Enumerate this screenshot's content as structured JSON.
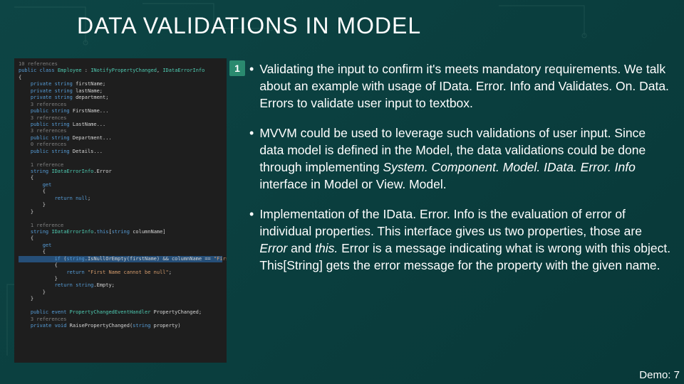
{
  "title": "DATA VALIDATIONS IN MODEL",
  "badge": "1",
  "demo_label": "Demo: 7",
  "bullets": [
    {
      "html": "Validating the input to confirm it's meets mandatory requirements. We talk about an example with usage of IData. Error. Info and Validates. On. Data. Errors to validate user input to textbox."
    },
    {
      "html": "MVVM could be used to leverage such validations of user input. Since data model is defined in the Model, the data validations could be done through implementing <em>System. Component. Model. IData. Error. Info</em> interface in Model or View. Model."
    },
    {
      "html": "Implementation of the IData. Error. Info is the evaluation of error of individual properties. This interface gives us two properties, those are <em>Error</em> and <em>this.</em> Error is a message indicating what is wrong with this object. This[String] gets the error message for the property with the given name."
    }
  ],
  "colors": {
    "background": "#0a3d3d",
    "code_bg": "#1e1e1e",
    "keyword": "#569cd6",
    "class": "#4ec9b0",
    "string": "#d69d6d",
    "gray": "#808080",
    "selection": "#264f78",
    "badge_bg": "#2a8a6f",
    "text": "#ffffff"
  },
  "code": {
    "lines": [
      {
        "g": "10 references",
        "t": ""
      },
      {
        "t": "<kw>public</kw> <kw>class</kw> <cls>Employee</cls> : <cls>INotifyPropertyChanged</cls>, <cls>IDataErrorInfo</cls>"
      },
      {
        "t": "{"
      },
      {
        "t": "    <kw>private string</kw> firstName;"
      },
      {
        "t": "    <kw>private string</kw> lastName;"
      },
      {
        "t": "    <kw>private string</kw> department;"
      },
      {
        "g": "    3 references",
        "t": ""
      },
      {
        "t": "    <kw>public string</kw> FirstName..."
      },
      {
        "g": "    3 references",
        "t": ""
      },
      {
        "t": "    <kw>public string</kw> LastName..."
      },
      {
        "g": "    3 references",
        "t": ""
      },
      {
        "t": "    <kw>public string</kw> Department..."
      },
      {
        "g": "    0 references",
        "t": ""
      },
      {
        "t": "    <kw>public string</kw> Details..."
      },
      {
        "t": ""
      },
      {
        "g": "    1 reference",
        "t": ""
      },
      {
        "t": "    <kw>string</kw> <cls>IDataErrorInfo</cls>.Error"
      },
      {
        "t": "    {"
      },
      {
        "t": "        <kw>get</kw>"
      },
      {
        "t": "        {"
      },
      {
        "t": "            <kw>return null</kw>;"
      },
      {
        "t": "        }"
      },
      {
        "t": "    }"
      },
      {
        "t": ""
      },
      {
        "g": "    1 reference",
        "t": ""
      },
      {
        "t": "    <kw>string</kw> <cls>IDataErrorInfo</cls>.<kw>this</kw>[<kw>string</kw> columnName]"
      },
      {
        "t": "    {"
      },
      {
        "t": "        <kw>get</kw>"
      },
      {
        "t": "        {"
      },
      {
        "sel": true,
        "t": "            <kw>if</kw> (<kw>string</kw>.IsNullOrEmpty(firstName) && columnName == <str>\"FirstName\"</str>)"
      },
      {
        "t": "            {"
      },
      {
        "t": "                <kw>return</kw> <str>\"First Name cannot be null\"</str>;"
      },
      {
        "t": "            }"
      },
      {
        "t": "            <kw>return</kw> <kw>string</kw>.Empty;"
      },
      {
        "t": "        }"
      },
      {
        "t": "    }"
      },
      {
        "t": ""
      },
      {
        "t": "    <kw>public event</kw> <cls>PropertyChangedEventHandler</cls> PropertyChanged;"
      },
      {
        "g": "    3 references",
        "t": ""
      },
      {
        "t": "    <kw>private void</kw> RaisePropertyChanged(<kw>string</kw> property)"
      }
    ]
  }
}
